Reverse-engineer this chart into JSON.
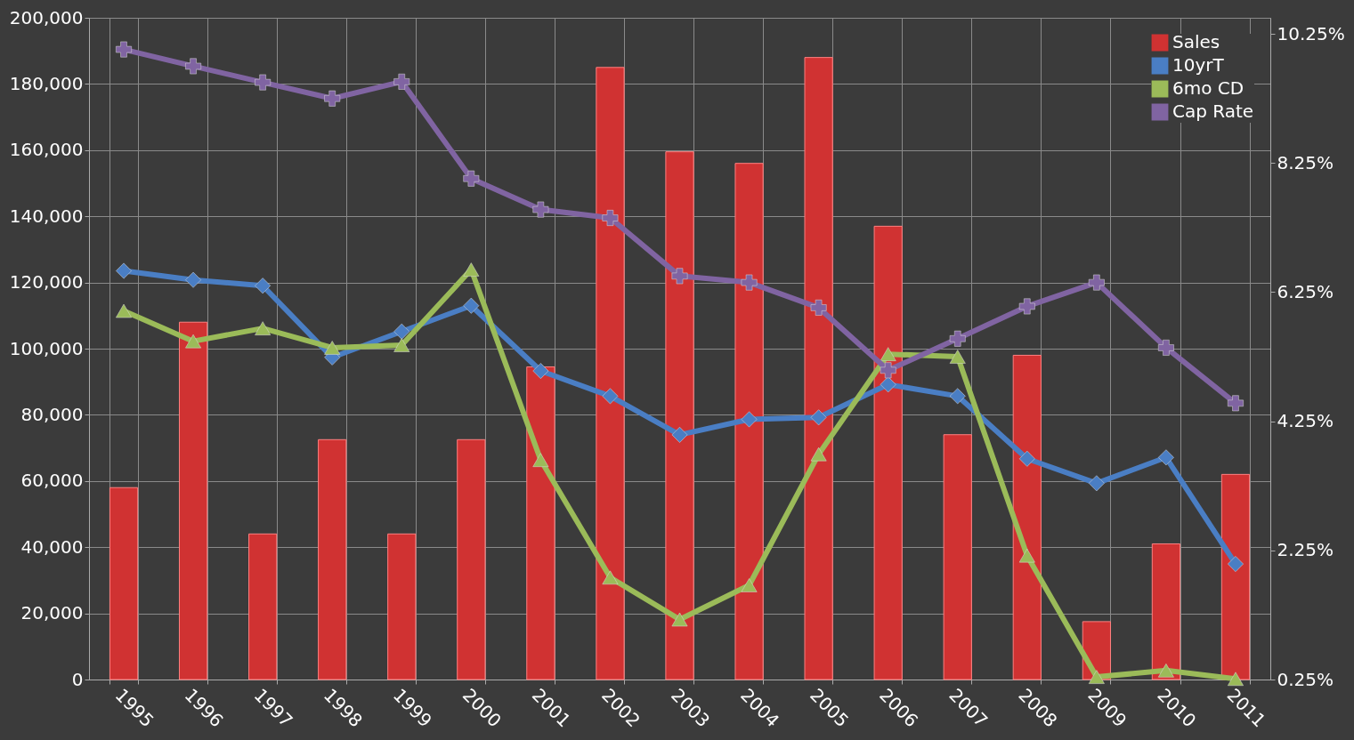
{
  "chart_data": {
    "type": "bar",
    "categories": [
      "1995",
      "1996",
      "1997",
      "1998",
      "1999",
      "2000",
      "2001",
      "2002",
      "2003",
      "2004",
      "2005",
      "2006",
      "2007",
      "2008",
      "2009",
      "2010",
      "2011"
    ],
    "series": [
      {
        "name": "Sales",
        "color": "#d03232",
        "values": [
          58000,
          108000,
          44000,
          72500,
          44000,
          72500,
          94500,
          185000,
          159500,
          156000,
          188000,
          137000,
          74000,
          98000,
          17500,
          41000,
          62000
        ]
      },
      {
        "name": "10yrT",
        "type": "line",
        "axis": "y2",
        "marker": "diamond",
        "color": "#4a7ec4",
        "values": [
          6.58,
          6.44,
          6.35,
          5.24,
          5.64,
          6.04,
          5.03,
          4.64,
          4.04,
          4.28,
          4.31,
          4.82,
          4.64,
          3.67,
          3.29,
          3.69,
          2.04
        ]
      },
      {
        "name": "6mo CD",
        "type": "line",
        "axis": "y2",
        "marker": "triangle",
        "color": "#9bbb59",
        "values": [
          5.96,
          5.49,
          5.69,
          5.39,
          5.43,
          6.6,
          3.65,
          1.83,
          1.18,
          1.71,
          3.74,
          5.29,
          5.25,
          2.17,
          0.29,
          0.39,
          0.26
        ]
      },
      {
        "name": "Cap Rate",
        "type": "line",
        "axis": "y2",
        "marker": "cross",
        "color": "#8064a2",
        "values": [
          10.01,
          9.75,
          9.5,
          9.25,
          9.51,
          8.01,
          7.53,
          7.4,
          6.5,
          6.4,
          6.01,
          5.04,
          5.53,
          6.03,
          6.4,
          5.39,
          4.53
        ]
      }
    ],
    "ylim": [
      0,
      200000
    ],
    "yticks": [
      0,
      {
        "value": 20000,
        "label": "20,000"
      },
      {
        "value": 40000,
        "label": "40,000"
      },
      {
        "value": 60000,
        "label": "60,000"
      },
      {
        "value": 80000,
        "label": "80,000"
      },
      {
        "value": 100000,
        "label": "100,000"
      },
      {
        "value": 120000,
        "label": "120,000"
      },
      {
        "value": 140000,
        "label": "140,000"
      },
      {
        "value": 160000,
        "label": "160,000"
      },
      {
        "value": 180000,
        "label": "180,000"
      },
      {
        "value": 200000,
        "label": "200,000"
      }
    ],
    "y2lim": [
      0.25,
      10.5
    ],
    "y2ticks": [
      {
        "value": 0.25,
        "label": "0.25%"
      },
      {
        "value": 2.25,
        "label": "2.25%"
      },
      {
        "value": 4.25,
        "label": "4.25%"
      },
      {
        "value": 6.25,
        "label": "6.25%"
      },
      {
        "value": 8.25,
        "label": "8.25%"
      },
      {
        "value": 10.25,
        "label": "10.25%"
      }
    ],
    "grid": true,
    "legend": "top right"
  }
}
